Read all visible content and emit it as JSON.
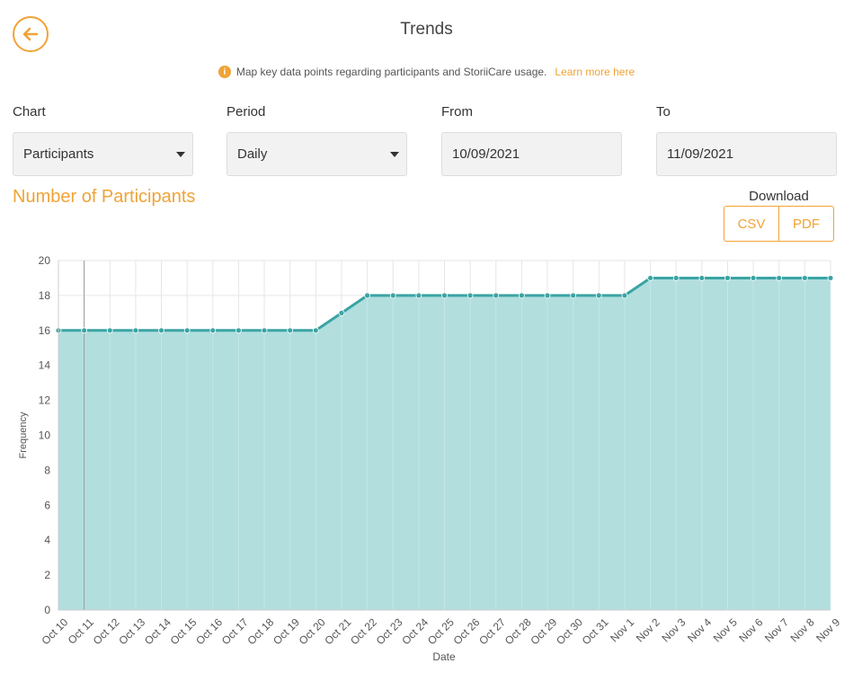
{
  "header": {
    "title": "Trends",
    "info_text": "Map key data points regarding participants and StoriiCare usage.",
    "learn_more": "Learn more here"
  },
  "filters": {
    "chart": {
      "label": "Chart",
      "value": "Participants"
    },
    "period": {
      "label": "Period",
      "value": "Daily"
    },
    "from": {
      "label": "From",
      "value": "10/09/2021"
    },
    "to": {
      "label": "To",
      "value": "11/09/2021"
    }
  },
  "download": {
    "label": "Download",
    "csv": "CSV",
    "pdf": "PDF"
  },
  "colors": {
    "accent": "#f0a336",
    "line": "#3aa4a4",
    "fill": "#b2dede"
  },
  "chart_data": {
    "type": "area",
    "title": "Number of Participants",
    "xlabel": "Date",
    "ylabel": "Frequency",
    "ylim": [
      0,
      20
    ],
    "yticks": [
      0,
      2,
      4,
      6,
      8,
      10,
      12,
      14,
      16,
      18,
      20
    ],
    "grid": true,
    "categories": [
      "Oct 10",
      "Oct 11",
      "Oct 12",
      "Oct 13",
      "Oct 14",
      "Oct 15",
      "Oct 16",
      "Oct 17",
      "Oct 18",
      "Oct 19",
      "Oct 20",
      "Oct 21",
      "Oct 22",
      "Oct 23",
      "Oct 24",
      "Oct 25",
      "Oct 26",
      "Oct 27",
      "Oct 28",
      "Oct 29",
      "Oct 30",
      "Oct 31",
      "Nov 1",
      "Nov 2",
      "Nov 3",
      "Nov 4",
      "Nov 5",
      "Nov 6",
      "Nov 7",
      "Nov 8",
      "Nov 9"
    ],
    "values": [
      16,
      16,
      16,
      16,
      16,
      16,
      16,
      16,
      16,
      16,
      16,
      17,
      18,
      18,
      18,
      18,
      18,
      18,
      18,
      18,
      18,
      18,
      18,
      19,
      19,
      19,
      19,
      19,
      19,
      19,
      19
    ]
  }
}
